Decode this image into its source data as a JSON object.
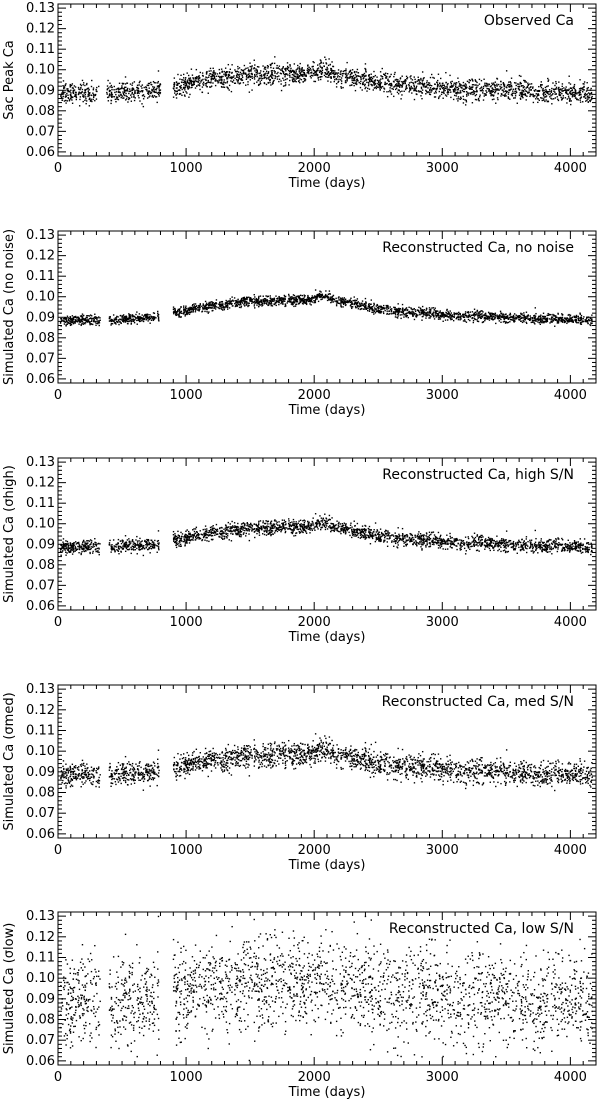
{
  "chart_data": [
    {
      "type": "scatter",
      "title": "Observed Ca",
      "xlabel": "Time (days)",
      "ylabel": "Sac Peak Ca",
      "xlim": [
        0,
        4200
      ],
      "ylim": [
        0.058,
        0.132
      ],
      "xticks": [
        0,
        1000,
        2000,
        3000,
        4000
      ],
      "yticks": [
        0.06,
        0.07,
        0.08,
        0.09,
        0.1,
        0.11,
        0.12,
        0.13
      ],
      "series": [
        {
          "trend_x": [
            20,
            380,
            800,
            900,
            1150,
            1450,
            1750,
            1950,
            2080,
            2200,
            2500,
            2800,
            3200,
            3700,
            4170
          ],
          "trend_y": [
            0.0885,
            0.0885,
            0.0905,
            0.0915,
            0.095,
            0.0975,
            0.098,
            0.098,
            0.1,
            0.097,
            0.094,
            0.092,
            0.0905,
            0.0895,
            0.088
          ],
          "scatter": 0.0025,
          "gaps": [
            [
              320,
              380
            ],
            [
              800,
              900
            ]
          ]
        }
      ]
    },
    {
      "type": "scatter",
      "title": "Reconstructed Ca, no noise",
      "xlabel": "Time (days)",
      "ylabel": "Simulated Ca (no noise)",
      "xlim": [
        0,
        4200
      ],
      "ylim": [
        0.058,
        0.132
      ],
      "xticks": [
        0,
        1000,
        2000,
        3000,
        4000
      ],
      "yticks": [
        0.06,
        0.07,
        0.08,
        0.09,
        0.1,
        0.11,
        0.12,
        0.13
      ],
      "series": [
        {
          "trend_x": [
            20,
            380,
            800,
            900,
            1150,
            1450,
            1750,
            1950,
            2080,
            2200,
            2500,
            2800,
            3200,
            3700,
            4170
          ],
          "trend_y": [
            0.0885,
            0.0885,
            0.0905,
            0.092,
            0.095,
            0.0975,
            0.098,
            0.0985,
            0.1005,
            0.098,
            0.094,
            0.092,
            0.0905,
            0.0895,
            0.0885
          ],
          "scatter": 0.0012,
          "gaps": [
            [
              330,
              400
            ],
            [
              790,
              900
            ]
          ]
        }
      ]
    },
    {
      "type": "scatter",
      "title": "Reconstructed Ca, high S/N",
      "xlabel": "Time (days)",
      "ylabel": "Simulated Ca (σhigh)",
      "xlim": [
        0,
        4200
      ],
      "ylim": [
        0.058,
        0.132
      ],
      "xticks": [
        0,
        1000,
        2000,
        3000,
        4000
      ],
      "yticks": [
        0.06,
        0.07,
        0.08,
        0.09,
        0.1,
        0.11,
        0.12,
        0.13
      ],
      "series": [
        {
          "trend_x": [
            20,
            380,
            800,
            900,
            1150,
            1450,
            1750,
            1950,
            2080,
            2200,
            2500,
            2800,
            3200,
            3700,
            4170
          ],
          "trend_y": [
            0.0885,
            0.0885,
            0.0905,
            0.092,
            0.095,
            0.0975,
            0.098,
            0.0985,
            0.1005,
            0.098,
            0.094,
            0.092,
            0.0905,
            0.0895,
            0.0885
          ],
          "scatter": 0.0017,
          "gaps": [
            [
              330,
              400
            ],
            [
              790,
              900
            ]
          ]
        }
      ]
    },
    {
      "type": "scatter",
      "title": "Reconstructed Ca, med S/N",
      "xlabel": "Time (days)",
      "ylabel": "Simulated Ca (σmed)",
      "xlim": [
        0,
        4200
      ],
      "ylim": [
        0.058,
        0.132
      ],
      "xticks": [
        0,
        1000,
        2000,
        3000,
        4000
      ],
      "yticks": [
        0.06,
        0.07,
        0.08,
        0.09,
        0.1,
        0.11,
        0.12,
        0.13
      ],
      "series": [
        {
          "trend_x": [
            20,
            380,
            800,
            900,
            1150,
            1450,
            1750,
            1950,
            2080,
            2200,
            2500,
            2800,
            3200,
            3700,
            4170
          ],
          "trend_y": [
            0.0885,
            0.0885,
            0.0905,
            0.092,
            0.095,
            0.0975,
            0.098,
            0.0985,
            0.1005,
            0.098,
            0.094,
            0.092,
            0.0905,
            0.0895,
            0.0885
          ],
          "scatter": 0.0028,
          "gaps": [
            [
              330,
              400
            ],
            [
              790,
              900
            ]
          ]
        }
      ]
    },
    {
      "type": "scatter",
      "title": "Reconstructed Ca, low S/N",
      "xlabel": "Time (days)",
      "ylabel": "Simulated Ca (σlow)",
      "xlim": [
        0,
        4200
      ],
      "ylim": [
        0.058,
        0.132
      ],
      "xticks": [
        0,
        1000,
        2000,
        3000,
        4000
      ],
      "yticks": [
        0.06,
        0.07,
        0.08,
        0.09,
        0.1,
        0.11,
        0.12,
        0.13
      ],
      "series": [
        {
          "trend_x": [
            20,
            380,
            800,
            900,
            1150,
            1450,
            1750,
            1950,
            2080,
            2200,
            2500,
            2800,
            3200,
            3700,
            4170
          ],
          "trend_y": [
            0.0885,
            0.0885,
            0.0905,
            0.092,
            0.095,
            0.0975,
            0.098,
            0.0985,
            0.1005,
            0.098,
            0.094,
            0.092,
            0.0905,
            0.0895,
            0.0885
          ],
          "scatter": 0.011,
          "gaps": [
            [
              330,
              400
            ],
            [
              790,
              900
            ]
          ]
        }
      ]
    }
  ]
}
